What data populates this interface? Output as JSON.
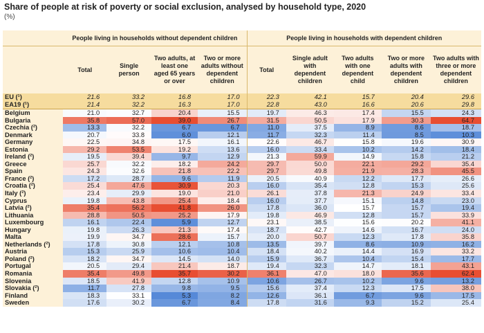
{
  "title": "Share of people at risk of poverty or social exclusion, analysed by household type, 2020",
  "unit": "(%)",
  "table": {
    "groups": [
      "People living in households without dependent children",
      "People living in households with dependent children"
    ],
    "columns": [
      "Total",
      "Single person",
      "Two adults, at least one aged 65 years or over",
      "Two or more adults without dependent children",
      "Total",
      "Single adult with dependent children",
      "Two adults with one dependent child",
      "Two or more adults with dependent children",
      "Two adults with three or more dependent children"
    ],
    "reference_rows": [
      {
        "label": "EU (¹)",
        "values": [
          21.6,
          33.2,
          16.8,
          17.0,
          22.3,
          42.1,
          15.7,
          20.4,
          29.6
        ]
      },
      {
        "label": "EA19 (¹)",
        "values": [
          21.4,
          32.2,
          16.3,
          17.0,
          22.8,
          43.0,
          16.6,
          20.6,
          29.8
        ]
      }
    ],
    "rows": [
      {
        "label": "Belgium",
        "values": [
          21.0,
          32.7,
          20.4,
          15.5,
          19.7,
          46.3,
          17.4,
          15.5,
          24.3
        ]
      },
      {
        "label": "Bulgaria",
        "values": [
          35.8,
          57.0,
          39.0,
          26.7,
          31.5,
          50.5,
          17.9,
          30.3,
          64.7
        ]
      },
      {
        "label": "Czechia (²)",
        "values": [
          13.3,
          32.2,
          6.7,
          6.7,
          11.0,
          37.5,
          8.9,
          8.6,
          18.7
        ]
      },
      {
        "label": "Denmark",
        "values": [
          20.7,
          33.8,
          6.0,
          12.1,
          11.7,
          32.3,
          11.4,
          8.5,
          10.3
        ]
      },
      {
        "label": "Germany",
        "values": [
          22.5,
          34.8,
          17.5,
          16.1,
          22.6,
          46.7,
          15.8,
          19.6,
          30.9
        ]
      },
      {
        "label": "Estonia",
        "values": [
          29.2,
          53.5,
          19.2,
          13.6,
          16.0,
          33.4,
          10.2,
          14.2,
          18.4
        ]
      },
      {
        "label": "Ireland (²)",
        "values": [
          19.5,
          39.4,
          9.7,
          12.9,
          21.3,
          59.9,
          14.9,
          15.8,
          21.2
        ]
      },
      {
        "label": "Greece",
        "values": [
          25.7,
          32.2,
          18.2,
          24.2,
          29.7,
          50.0,
          22.1,
          29.2,
          35.4
        ]
      },
      {
        "label": "Spain",
        "values": [
          24.3,
          32.6,
          21.8,
          22.2,
          29.7,
          49.8,
          21.9,
          28.3,
          45.5
        ]
      },
      {
        "label": "France (²)",
        "values": [
          17.2,
          28.7,
          9.6,
          11.9,
          20.5,
          40.9,
          12.2,
          17.7,
          26.6
        ]
      },
      {
        "label": "Croatia (²)",
        "values": [
          25.4,
          47.6,
          30.9,
          20.3,
          16.0,
          35.4,
          12.8,
          15.3,
          25.6
        ]
      },
      {
        "label": "Italy (²)",
        "values": [
          23.4,
          29.9,
          19.0,
          21.0,
          26.1,
          37.8,
          21.3,
          24.9,
          33.4
        ]
      },
      {
        "label": "Cyprus",
        "values": [
          19.8,
          43.8,
          25.4,
          18.4,
          16.0,
          37.7,
          15.1,
          14.8,
          23.0
        ]
      },
      {
        "label": "Latvia (²)",
        "values": [
          35.4,
          56.2,
          41.8,
          26.0,
          17.8,
          36.0,
          15.7,
          15.7,
          19.4
        ]
      },
      {
        "label": "Lithuania",
        "values": [
          28.8,
          50.5,
          25.2,
          17.9,
          19.8,
          46.9,
          12.8,
          15.7,
          33.9
        ]
      },
      {
        "label": "Luxembourg",
        "values": [
          16.1,
          22.4,
          5.9,
          12.7,
          23.1,
          38.5,
          15.6,
          20.2,
          41.1
        ]
      },
      {
        "label": "Hungary",
        "values": [
          19.8,
          26.3,
          21.3,
          17.4,
          18.7,
          42.7,
          14.6,
          16.7,
          24.0
        ]
      },
      {
        "label": "Malta",
        "values": [
          19.9,
          34.7,
          28.6,
          15.7,
          20.0,
          50.7,
          12.3,
          17.8,
          35.8
        ]
      },
      {
        "label": "Netherlands (²)",
        "values": [
          17.8,
          30.8,
          12.1,
          10.8,
          13.5,
          39.7,
          8.6,
          10.9,
          16.2
        ]
      },
      {
        "label": "Austria",
        "values": [
          15.3,
          25.9,
          10.6,
          10.4,
          18.4,
          40.2,
          14.4,
          16.9,
          33.2
        ]
      },
      {
        "label": "Poland (²)",
        "values": [
          18.2,
          34.7,
          14.5,
          14.0,
          15.9,
          36.7,
          10.4,
          15.4,
          17.7
        ]
      },
      {
        "label": "Portugal",
        "values": [
          20.5,
          29.4,
          21.4,
          18.7,
          19.4,
          32.3,
          14.7,
          18.1,
          43.1
        ]
      },
      {
        "label": "Romania",
        "values": [
          35.4,
          49.8,
          35.7,
          30.2,
          36.1,
          47.0,
          18.0,
          35.6,
          62.4
        ]
      },
      {
        "label": "Slovenia",
        "values": [
          18.5,
          41.9,
          12.8,
          10.9,
          10.6,
          26.7,
          10.2,
          9.6,
          13.2
        ]
      },
      {
        "label": "Slovakia (²)",
        "values": [
          11.7,
          27.8,
          9.8,
          9.5,
          15.6,
          37.4,
          12.3,
          17.5,
          38.0
        ]
      },
      {
        "label": "Finland",
        "values": [
          18.3,
          33.1,
          5.3,
          8.2,
          12.6,
          36.1,
          6.7,
          9.6,
          17.5
        ]
      },
      {
        "label": "Sweden",
        "values": [
          17.6,
          30.2,
          6.7,
          8.4,
          17.8,
          31.6,
          9.3,
          15.2,
          25.4
        ]
      }
    ]
  }
}
